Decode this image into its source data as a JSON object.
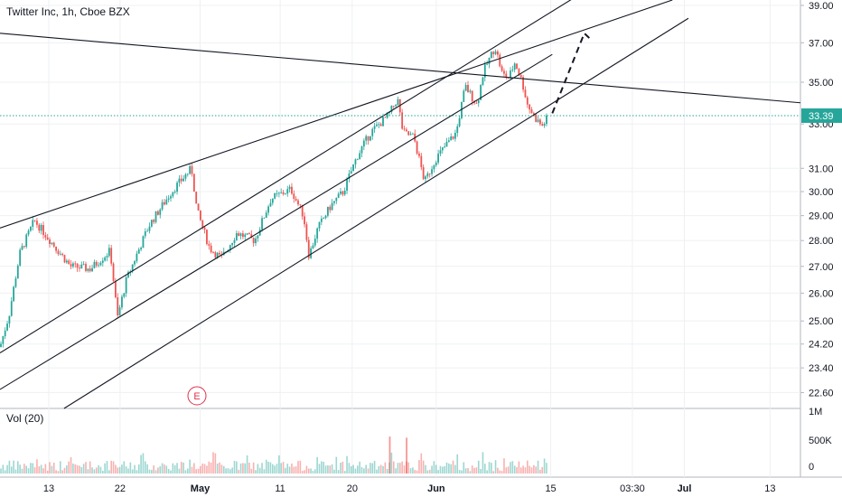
{
  "header": {
    "title": "Twitter Inc, 1h, Cboe BZX"
  },
  "volume_panel": {
    "label": "Vol (20)"
  },
  "price_tag": {
    "value": "33.39",
    "color": "#26a69a"
  },
  "earnings_marker": {
    "label": "E",
    "color": "#e0314b"
  },
  "colors": {
    "up": "#26a69a",
    "down": "#ef5350",
    "line": "#131722",
    "grid": "#eef0f3"
  },
  "chart_data": {
    "type": "candlestick",
    "title": "Twitter Inc, 1h, Cboe BZX",
    "y_axis": {
      "ticks": [
        22.6,
        23.4,
        24.2,
        25.0,
        26.0,
        27.0,
        28.0,
        29.0,
        30.0,
        31.0,
        33.0,
        35.0,
        37.0,
        39.0
      ],
      "tick_labels": [
        "22.60",
        "23.40",
        "24.20",
        "25.00",
        "26.00",
        "27.00",
        "28.00",
        "29.00",
        "30.00",
        "31.00",
        "33.00",
        "35.00",
        "37.00",
        "39.00"
      ],
      "scale": "log",
      "ylim": [
        22.1,
        39.3
      ]
    },
    "x_axis": {
      "tick_labels": [
        "13",
        "22",
        "May",
        "11",
        "20",
        "Jun",
        "15",
        "03:30",
        "Jul",
        "13"
      ]
    },
    "last_price": 33.39,
    "volume_axis": {
      "tick_labels": [
        "1M",
        "500K",
        "0"
      ],
      "max": 1000000
    },
    "price_path_knots": [
      [
        0,
        24.1
      ],
      [
        10,
        25.2
      ],
      [
        22,
        27.5
      ],
      [
        38,
        28.8
      ],
      [
        60,
        27.8
      ],
      [
        78,
        27.0
      ],
      [
        100,
        26.9
      ],
      [
        122,
        27.6
      ],
      [
        130,
        25.1
      ],
      [
        140,
        26.5
      ],
      [
        165,
        28.6
      ],
      [
        190,
        30.0
      ],
      [
        212,
        31.0
      ],
      [
        218,
        29.2
      ],
      [
        232,
        27.7
      ],
      [
        245,
        27.3
      ],
      [
        262,
        28.3
      ],
      [
        282,
        28.0
      ],
      [
        300,
        29.7
      ],
      [
        322,
        30.1
      ],
      [
        336,
        29.0
      ],
      [
        342,
        27.4
      ],
      [
        352,
        28.5
      ],
      [
        366,
        29.4
      ],
      [
        380,
        30.0
      ],
      [
        395,
        31.5
      ],
      [
        410,
        32.6
      ],
      [
        430,
        33.4
      ],
      [
        440,
        34.2
      ],
      [
        446,
        32.6
      ],
      [
        458,
        32.4
      ],
      [
        470,
        30.4
      ],
      [
        482,
        31.4
      ],
      [
        495,
        32.1
      ],
      [
        505,
        32.6
      ],
      [
        515,
        34.8
      ],
      [
        528,
        33.9
      ],
      [
        535,
        35.5
      ],
      [
        548,
        36.8
      ],
      [
        556,
        35.4
      ],
      [
        563,
        35.2
      ],
      [
        570,
        36.0
      ],
      [
        578,
        35.0
      ],
      [
        584,
        33.9
      ],
      [
        592,
        33.3
      ],
      [
        600,
        32.9
      ],
      [
        607,
        33.35
      ]
    ],
    "volume_spikes": [
      {
        "x_frac": 0.487,
        "value": 620000
      },
      {
        "x_frac": 0.508,
        "value": 600000
      }
    ],
    "trend_lines": [
      {
        "from": {
          "x": 0.0,
          "y": 37.5
        },
        "to": {
          "x": 1.0,
          "y": 34.0
        }
      },
      {
        "from": {
          "x": 0.0,
          "y": 28.5
        },
        "to": {
          "x": 0.84,
          "y": 39.3
        }
      },
      {
        "from": {
          "x": 0.0,
          "y": 23.9
        },
        "to": {
          "x": 0.72,
          "y": 39.5
        }
      },
      {
        "from": {
          "x": 0.0,
          "y": 22.7
        },
        "to": {
          "x": 0.69,
          "y": 36.4
        }
      },
      {
        "from": {
          "x": 0.08,
          "y": 22.1
        },
        "to": {
          "x": 0.86,
          "y": 38.3
        }
      }
    ],
    "projection": {
      "style": "dashed",
      "points": [
        {
          "x": 0.69,
          "y": 33.5
        },
        {
          "x": 0.73,
          "y": 37.5
        },
        {
          "x": 0.74,
          "y": 37.1
        }
      ]
    }
  }
}
